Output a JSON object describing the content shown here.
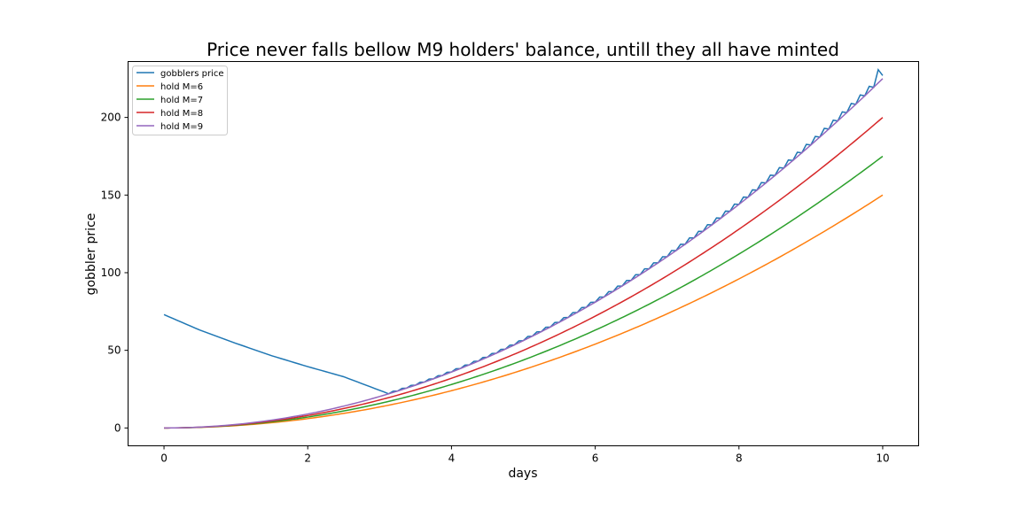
{
  "chart_data": {
    "type": "line",
    "title": "Price never falls bellow M9 holders' balance, untill they all have minted",
    "xlabel": "days",
    "ylabel": "gobbler price",
    "xlim": [
      -0.5,
      10.5
    ],
    "ylim": [
      -11.5,
      236
    ],
    "xticks": [
      0,
      2,
      4,
      6,
      8,
      10
    ],
    "yticks": [
      0,
      50,
      100,
      150,
      200
    ],
    "grid": false,
    "legend_position": "top-left",
    "series": [
      {
        "name": "gobblers price",
        "color": "#1f77b4",
        "shape": "decays from 73 at day 0 to about 22.5 at day 3.1, then follows a sawtooth just above the hold M=9 curve up to about 233 at day 10",
        "points": [
          [
            0,
            73
          ],
          [
            0.5,
            63
          ],
          [
            1,
            54.5
          ],
          [
            1.5,
            46.5
          ],
          [
            2,
            39.5
          ],
          [
            2.5,
            33
          ],
          [
            3.1,
            22.5
          ],
          [
            3.3,
            25
          ],
          [
            3.5,
            28
          ],
          [
            3.7,
            31
          ],
          [
            4,
            36
          ],
          [
            4.5,
            46
          ],
          [
            5,
            57
          ],
          [
            5.5,
            69
          ],
          [
            6,
            82
          ],
          [
            6.5,
            96
          ],
          [
            7,
            111
          ],
          [
            7.5,
            127
          ],
          [
            8,
            145
          ],
          [
            8.5,
            163
          ],
          [
            9,
            183
          ],
          [
            9.5,
            205
          ],
          [
            9.9,
            233
          ],
          [
            10,
            227
          ]
        ]
      },
      {
        "name": "hold M=6",
        "color": "#ff7f0e",
        "formula": "1.5*x^2",
        "points": [
          [
            0,
            0
          ],
          [
            2,
            6
          ],
          [
            4,
            24
          ],
          [
            6,
            54
          ],
          [
            8,
            96
          ],
          [
            10,
            150
          ]
        ]
      },
      {
        "name": "hold M=7",
        "color": "#2ca02c",
        "formula": "1.75*x^2",
        "points": [
          [
            0,
            0
          ],
          [
            2,
            7
          ],
          [
            4,
            28
          ],
          [
            6,
            63
          ],
          [
            8,
            112
          ],
          [
            10,
            175
          ]
        ]
      },
      {
        "name": "hold M=8",
        "color": "#d62728",
        "formula": "2*x^2",
        "points": [
          [
            0,
            0
          ],
          [
            2,
            8
          ],
          [
            4,
            32
          ],
          [
            6,
            72
          ],
          [
            8,
            128
          ],
          [
            10,
            200
          ]
        ]
      },
      {
        "name": "hold M=9",
        "color": "#9467bd",
        "formula": "2.25*x^2",
        "points": [
          [
            0,
            0
          ],
          [
            2,
            9
          ],
          [
            4,
            36
          ],
          [
            6,
            81
          ],
          [
            8,
            144
          ],
          [
            10,
            225
          ]
        ]
      }
    ]
  }
}
